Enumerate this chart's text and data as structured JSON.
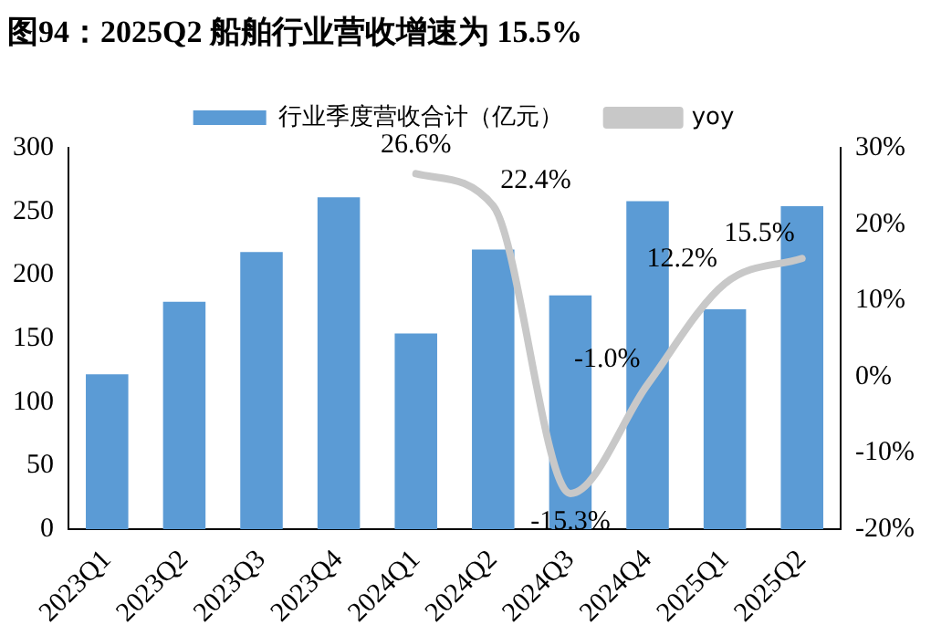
{
  "chart_data": {
    "type": "bar",
    "title": "图94：2025Q2 船舶行业营收增速为 15.5%",
    "categories": [
      "2023Q1",
      "2023Q2",
      "2023Q3",
      "2023Q4",
      "2024Q1",
      "2024Q2",
      "2024Q3",
      "2024Q4",
      "2025Q1",
      "2025Q2"
    ],
    "series": [
      {
        "name": "行业季度营收合计（亿元）",
        "color": "#5b9bd5",
        "values": [
          122,
          179,
          218,
          261,
          154,
          220,
          184,
          258,
          173,
          254
        ]
      },
      {
        "name": "yoy",
        "type": "line",
        "axis": "y2",
        "color": "#c8c8c8",
        "values": [
          null,
          null,
          null,
          null,
          26.6,
          22.4,
          -15.3,
          -1.0,
          12.2,
          15.5
        ],
        "value_labels": [
          null,
          null,
          null,
          null,
          "26.6%",
          "22.4%",
          "-15.3%",
          "-1.0%",
          "12.2%",
          "15.5%"
        ]
      }
    ],
    "ylim": [
      0,
      300
    ],
    "yticks": [
      0,
      50,
      100,
      150,
      200,
      250,
      300
    ],
    "y2lim": [
      -20,
      30
    ],
    "y2ticks": [
      {
        "value": -20,
        "label": "-20%"
      },
      {
        "value": -10,
        "label": "-10%"
      },
      {
        "value": 0,
        "label": "0%"
      },
      {
        "value": 10,
        "label": "10%"
      },
      {
        "value": 20,
        "label": "20%"
      },
      {
        "value": 30,
        "label": "30%"
      }
    ],
    "grid": false,
    "legend": "top",
    "marker": "none"
  }
}
